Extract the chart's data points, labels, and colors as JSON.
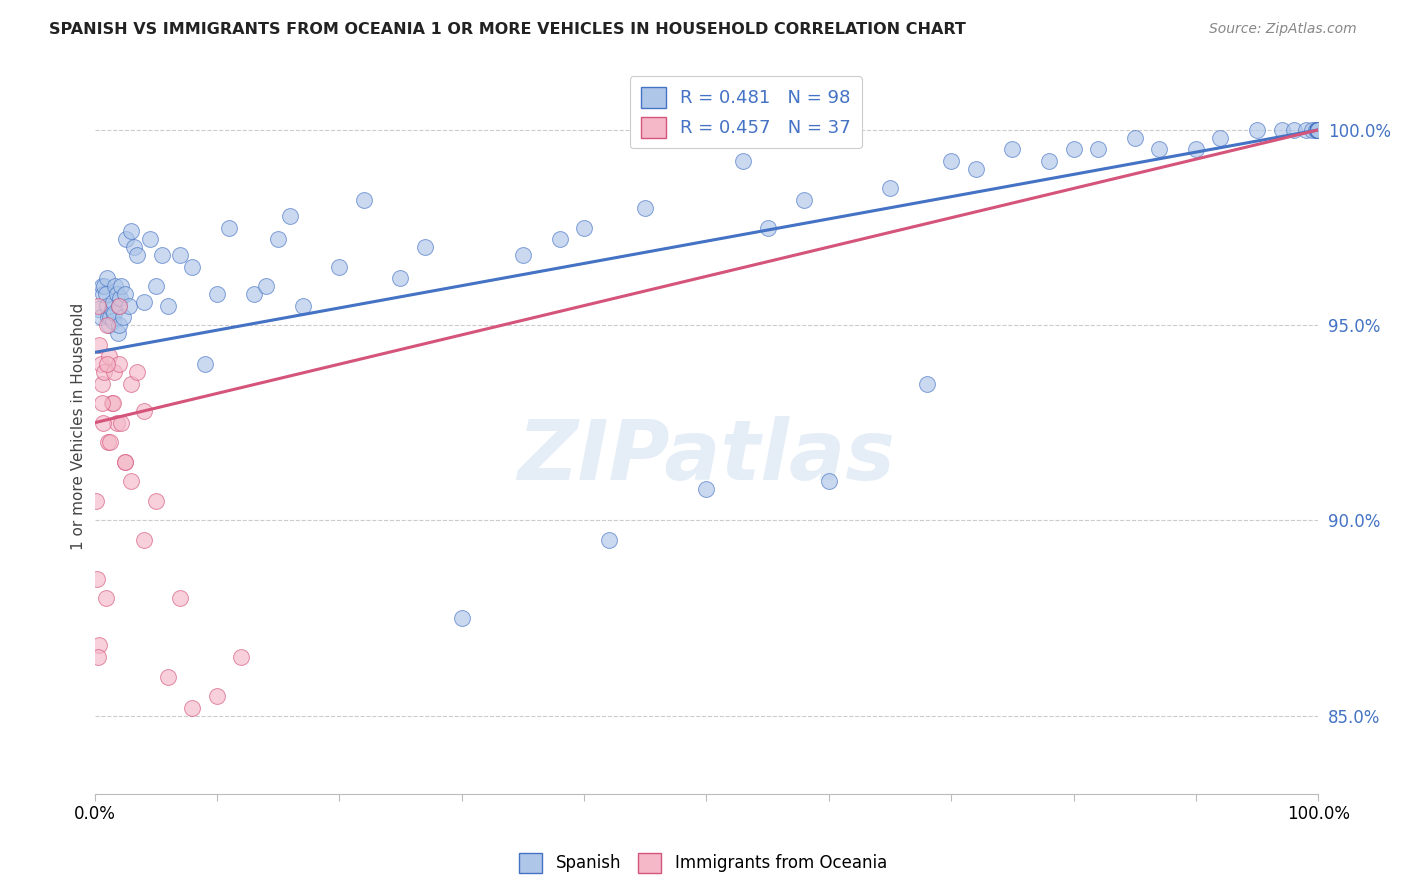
{
  "title": "SPANISH VS IMMIGRANTS FROM OCEANIA 1 OR MORE VEHICLES IN HOUSEHOLD CORRELATION CHART",
  "source": "Source: ZipAtlas.com",
  "ylabel": "1 or more Vehicles in Household",
  "ytick_vals": [
    85.0,
    90.0,
    95.0,
    100.0
  ],
  "xlim": [
    0.0,
    100.0
  ],
  "ylim": [
    83.0,
    101.8
  ],
  "legend1_label": "Spanish",
  "legend2_label": "Immigrants from Oceania",
  "r_spanish": 0.481,
  "n_spanish": 98,
  "r_oceania": 0.457,
  "n_oceania": 37,
  "color_spanish": "#aec6e8",
  "color_oceania": "#f4b8c8",
  "color_trend_spanish": "#4472c4",
  "color_trend_oceania": "#d4547a",
  "background_color": "#ffffff",
  "watermark_text": "ZIPatlas",
  "trend_spanish_y0": 94.3,
  "trend_spanish_y100": 100.0,
  "trend_oceania_y0": 92.5,
  "trend_oceania_y100": 100.0,
  "spanish_x": [
    0.3,
    0.5,
    0.6,
    0.7,
    0.8,
    0.9,
    1.0,
    1.0,
    1.1,
    1.2,
    1.3,
    1.4,
    1.5,
    1.5,
    1.6,
    1.7,
    1.8,
    1.9,
    2.0,
    2.0,
    2.1,
    2.2,
    2.3,
    2.5,
    2.6,
    2.8,
    3.0,
    3.2,
    3.5,
    4.0,
    4.5,
    5.0,
    5.5,
    6.0,
    7.0,
    8.0,
    9.0,
    10.0,
    11.0,
    13.0,
    14.0,
    15.0,
    16.0,
    17.0,
    20.0,
    22.0,
    25.0,
    27.0,
    30.0,
    35.0,
    38.0,
    40.0,
    42.0,
    45.0,
    50.0,
    53.0,
    55.0,
    58.0,
    60.0,
    65.0,
    68.0,
    70.0,
    72.0,
    75.0,
    78.0,
    80.0,
    82.0,
    85.0,
    87.0,
    90.0,
    92.0,
    95.0,
    97.0,
    98.0,
    99.0,
    99.5,
    99.8,
    99.9,
    100.0,
    100.0,
    100.0,
    100.0,
    100.0,
    100.0,
    100.0,
    100.0,
    100.0,
    100.0,
    100.0,
    100.0,
    100.0,
    100.0,
    100.0,
    100.0,
    100.0,
    100.0,
    100.0,
    100.0
  ],
  "spanish_y": [
    95.4,
    95.2,
    96.0,
    95.8,
    96.0,
    95.8,
    95.5,
    96.2,
    95.2,
    95.0,
    95.2,
    95.4,
    95.1,
    95.6,
    95.3,
    96.0,
    95.8,
    94.8,
    95.0,
    95.5,
    95.7,
    96.0,
    95.2,
    95.8,
    97.2,
    95.5,
    97.4,
    97.0,
    96.8,
    95.6,
    97.2,
    96.0,
    96.8,
    95.5,
    96.8,
    96.5,
    94.0,
    95.8,
    97.5,
    95.8,
    96.0,
    97.2,
    97.8,
    95.5,
    96.5,
    98.2,
    96.2,
    97.0,
    87.5,
    96.8,
    97.2,
    97.5,
    89.5,
    98.0,
    90.8,
    99.2,
    97.5,
    98.2,
    91.0,
    98.5,
    93.5,
    99.2,
    99.0,
    99.5,
    99.2,
    99.5,
    99.5,
    99.8,
    99.5,
    99.5,
    99.8,
    100.0,
    100.0,
    100.0,
    100.0,
    100.0,
    100.0,
    100.0,
    100.0,
    100.0,
    100.0,
    100.0,
    100.0,
    100.0,
    100.0,
    100.0,
    100.0,
    100.0,
    100.0,
    100.0,
    100.0,
    100.0,
    100.0,
    100.0,
    100.0,
    100.0,
    100.0,
    100.0
  ],
  "oceania_x": [
    0.1,
    0.2,
    0.3,
    0.4,
    0.5,
    0.6,
    0.8,
    1.0,
    1.2,
    1.4,
    1.6,
    1.8,
    2.0,
    2.5,
    3.0,
    3.5,
    4.0,
    5.0,
    6.0,
    7.0,
    8.0,
    10.0,
    12.0,
    1.0,
    1.5,
    2.0,
    2.5,
    3.0,
    4.0,
    0.7,
    0.9,
    1.1,
    0.4,
    0.3,
    0.6,
    1.3,
    2.2
  ],
  "oceania_y": [
    90.5,
    88.5,
    95.5,
    94.5,
    94.0,
    93.5,
    93.8,
    95.0,
    94.2,
    93.0,
    93.8,
    92.5,
    94.0,
    91.5,
    93.5,
    93.8,
    92.8,
    90.5,
    86.0,
    88.0,
    85.2,
    85.5,
    86.5,
    94.0,
    93.0,
    95.5,
    91.5,
    91.0,
    89.5,
    92.5,
    88.0,
    92.0,
    86.8,
    86.5,
    93.0,
    92.0,
    92.5
  ]
}
